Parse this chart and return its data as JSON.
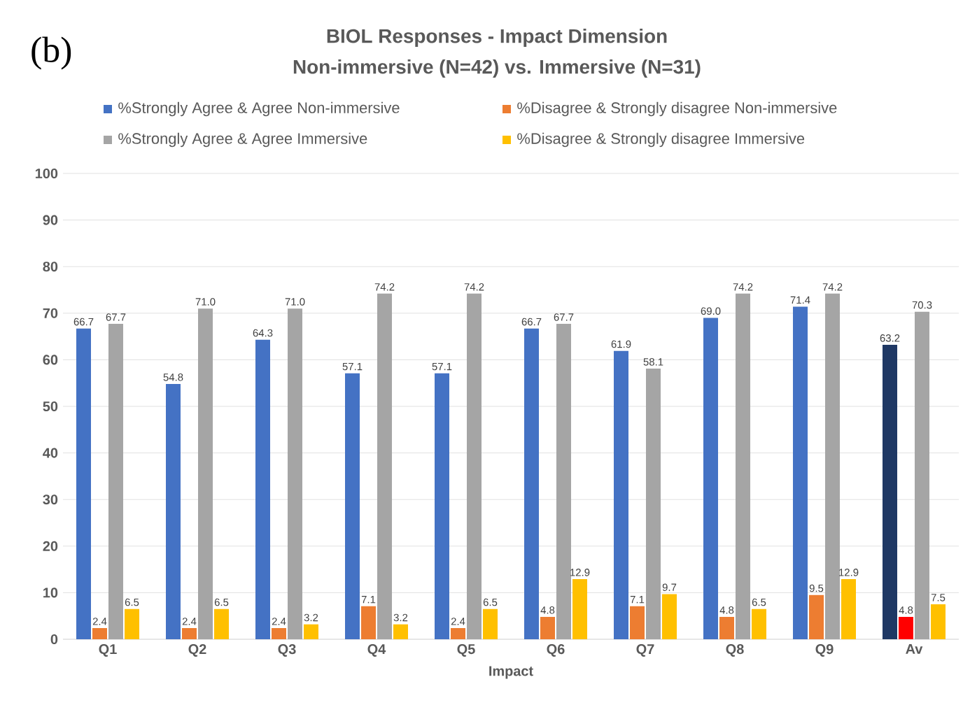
{
  "chart_data": {
    "type": "bar",
    "title": "BIOL Responses - Impact Dimension",
    "subtitle": "Non-immersive (N=42) vs. Immersive (N=31)",
    "xlabel": "Impact",
    "annotations": [
      "(b)"
    ],
    "categories": [
      "Q1",
      "Q2",
      "Q3",
      "Q4",
      "Q5",
      "Q6",
      "Q7",
      "Q8",
      "Q9",
      "Av"
    ],
    "series": [
      {
        "name": "%Strongly Agree & Agree Non-immersive",
        "color": "#4472c4",
        "colors": [
          "#4472c4",
          "#4472c4",
          "#4472c4",
          "#4472c4",
          "#4472c4",
          "#4472c4",
          "#4472c4",
          "#4472c4",
          "#4472c4",
          "#1f3864"
        ],
        "values": [
          66.7,
          54.8,
          64.3,
          57.1,
          57.1,
          66.7,
          61.9,
          69.0,
          71.4,
          63.2
        ],
        "value_labels": [
          "66.7",
          "54.8",
          "64.3",
          "57.1",
          "57.1",
          "66.7",
          "61.9",
          "69.0",
          "71.4",
          "63.2"
        ]
      },
      {
        "name": "%Disagree & Strongly disagree Non-immersive",
        "color": "#ed7d31",
        "colors": [
          "#ed7d31",
          "#ed7d31",
          "#ed7d31",
          "#ed7d31",
          "#ed7d31",
          "#ed7d31",
          "#ed7d31",
          "#ed7d31",
          "#ed7d31",
          "#ff0000"
        ],
        "values": [
          2.4,
          2.4,
          2.4,
          7.1,
          2.4,
          4.8,
          7.1,
          4.8,
          9.5,
          4.8
        ],
        "value_labels": [
          "2.4",
          "2.4",
          "2.4",
          "7.1",
          "2.4",
          "4.8",
          "7.1",
          "4.8",
          "9.5",
          "4.8"
        ]
      },
      {
        "name": "%Strongly Agree & Agree Immersive",
        "color": "#a5a5a5",
        "values": [
          67.7,
          71.0,
          71.0,
          74.2,
          74.2,
          67.7,
          58.1,
          74.2,
          74.2,
          70.3
        ],
        "value_labels": [
          "67.7",
          "71.0",
          "71.0",
          "74.2",
          "74.2",
          "67.7",
          "58.1",
          "74.2",
          "74.2",
          "70.3"
        ]
      },
      {
        "name": "%Disagree & Strongly disagree Immersive",
        "color": "#ffc000",
        "values": [
          6.5,
          6.5,
          3.2,
          3.2,
          6.5,
          12.9,
          9.7,
          6.5,
          12.9,
          7.5
        ],
        "value_labels": [
          "6.5",
          "6.5",
          "3.2",
          "3.2",
          "6.5",
          "12.9",
          "9.7",
          "6.5",
          "12.9",
          "7.5"
        ]
      }
    ],
    "ylim": [
      0,
      100
    ],
    "yticks": [
      0,
      10,
      20,
      30,
      40,
      50,
      60,
      70,
      80,
      90,
      100
    ],
    "grid": "y",
    "legend": "top"
  }
}
